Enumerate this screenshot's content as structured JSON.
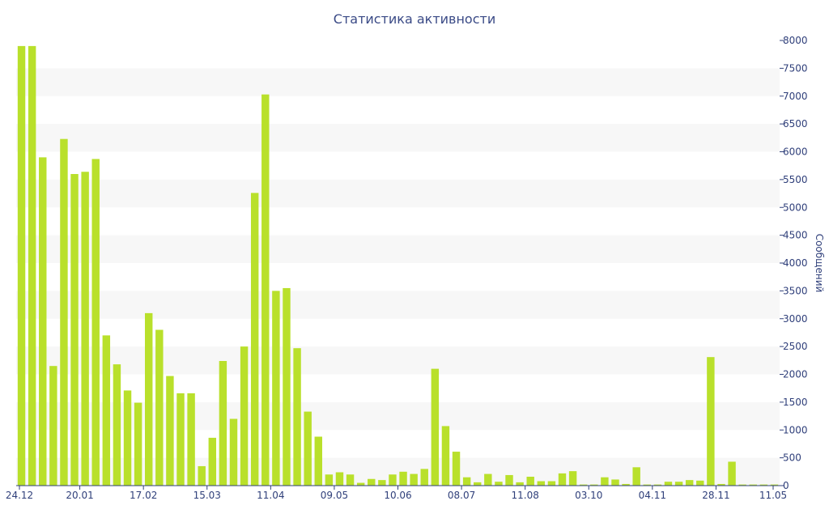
{
  "chart_data": {
    "type": "bar",
    "title": "Статистика активности",
    "ylabel": "Сообщений",
    "xlabel": "",
    "ylim": [
      0,
      8000
    ],
    "yticks": [
      0,
      500,
      1000,
      1500,
      2000,
      2500,
      3000,
      3500,
      4000,
      4500,
      5000,
      5500,
      6000,
      6500,
      7000,
      7500,
      8000
    ],
    "x_tick_labels": [
      "24.12",
      "20.01",
      "17.02",
      "15.03",
      "11.04",
      "09.05",
      "10.06",
      "08.07",
      "11.08",
      "03.10",
      "04.11",
      "28.11",
      "11.05"
    ],
    "y_axis_position": "right",
    "grid": "horizontal bands",
    "color": "#b9e02b",
    "values": [
      7900,
      7900,
      5900,
      2150,
      6230,
      5600,
      5640,
      5870,
      2700,
      2180,
      1710,
      1490,
      3100,
      2800,
      1970,
      1660,
      1660,
      350,
      860,
      2240,
      1200,
      2500,
      5260,
      7030,
      3500,
      3550,
      2470,
      1330,
      880,
      200,
      240,
      200,
      50,
      120,
      100,
      200,
      250,
      210,
      300,
      2100,
      1070,
      610,
      150,
      60,
      210,
      70,
      190,
      60,
      160,
      80,
      80,
      220,
      260,
      20,
      20,
      150,
      110,
      30,
      330,
      20,
      20,
      70,
      70,
      100,
      90,
      2310,
      30,
      430,
      20,
      20,
      20,
      20
    ]
  }
}
